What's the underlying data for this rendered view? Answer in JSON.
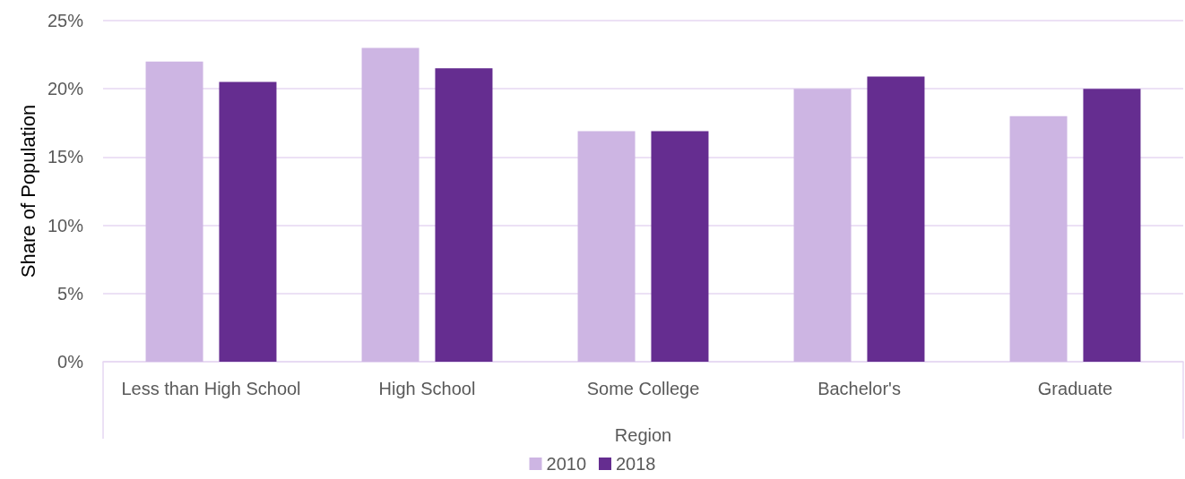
{
  "chart_data": {
    "type": "bar",
    "xlabel": "Region",
    "ylabel": "Share of Population",
    "categories": [
      "Less than High School",
      "High School",
      "Some College",
      "Bachelor's",
      "Graduate"
    ],
    "series": [
      {
        "name": "2010",
        "color": "#cdb5e3",
        "values": [
          22,
          23,
          16.9,
          20,
          18
        ]
      },
      {
        "name": "2018",
        "color": "#652d90",
        "values": [
          20.5,
          21.5,
          16.9,
          20.9,
          20
        ]
      }
    ],
    "ylim": [
      0,
      25
    ],
    "yticks": [
      {
        "value": 0,
        "label": "0%"
      },
      {
        "value": 5,
        "label": "5%"
      },
      {
        "value": 10,
        "label": "10%"
      },
      {
        "value": 15,
        "label": "15%"
      },
      {
        "value": 20,
        "label": "20%"
      },
      {
        "value": 25,
        "label": "25%"
      }
    ],
    "grid": "y",
    "legend": "bottom"
  }
}
